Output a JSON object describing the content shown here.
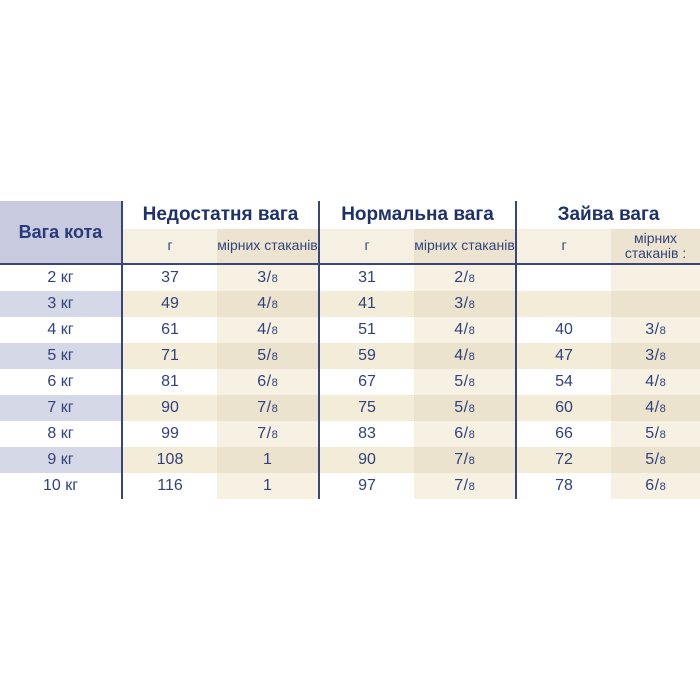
{
  "table": {
    "corner_header": "Вага кота",
    "groups": [
      {
        "label": "Недостатня вага",
        "grams_header": "г",
        "cups_header": "мірних стаканів"
      },
      {
        "label": "Нормальна вага",
        "grams_header": "г",
        "cups_header": "мірних стаканів"
      },
      {
        "label": "Зайва вага",
        "grams_header": "г",
        "cups_header": "мірних стаканів :"
      }
    ],
    "rows": [
      {
        "label": "2 кг",
        "under_g": "37",
        "under_cups": "3/8",
        "normal_g": "31",
        "normal_cups": "2/8",
        "over_g": "",
        "over_cups": ""
      },
      {
        "label": "3 кг",
        "under_g": "49",
        "under_cups": "4/8",
        "normal_g": "41",
        "normal_cups": "3/8",
        "over_g": "",
        "over_cups": ""
      },
      {
        "label": "4 кг",
        "under_g": "61",
        "under_cups": "4/8",
        "normal_g": "51",
        "normal_cups": "4/8",
        "over_g": "40",
        "over_cups": "3/8"
      },
      {
        "label": "5 кг",
        "under_g": "71",
        "under_cups": "5/8",
        "normal_g": "59",
        "normal_cups": "4/8",
        "over_g": "47",
        "over_cups": "3/8"
      },
      {
        "label": "6 кг",
        "under_g": "81",
        "under_cups": "6/8",
        "normal_g": "67",
        "normal_cups": "5/8",
        "over_g": "54",
        "over_cups": "4/8"
      },
      {
        "label": "7 кг",
        "under_g": "90",
        "under_cups": "7/8",
        "normal_g": "75",
        "normal_cups": "5/8",
        "over_g": "60",
        "over_cups": "4/8"
      },
      {
        "label": "8 кг",
        "under_g": "99",
        "under_cups": "7/8",
        "normal_g": "83",
        "normal_cups": "6/8",
        "over_g": "66",
        "over_cups": "5/8"
      },
      {
        "label": "9 кг",
        "under_g": "108",
        "under_cups": "1",
        "normal_g": "90",
        "normal_cups": "7/8",
        "over_g": "72",
        "over_cups": "5/8"
      },
      {
        "label": "10 кг",
        "under_g": "116",
        "under_cups": "1",
        "normal_g": "97",
        "normal_cups": "7/8",
        "over_g": "78",
        "over_cups": "6/8"
      }
    ]
  },
  "colors": {
    "navy_text": "#33417a",
    "navy_header": "#1f3166",
    "divider_line": "#3a4677",
    "lavender_corner": "#c8cbdf",
    "lavender_stripe": "#d5d8e7",
    "cream_light": "#f6f1e3",
    "cream_mid": "#f2ecd9",
    "cream_dark": "#ebe3ce",
    "background": "#ffffff"
  }
}
